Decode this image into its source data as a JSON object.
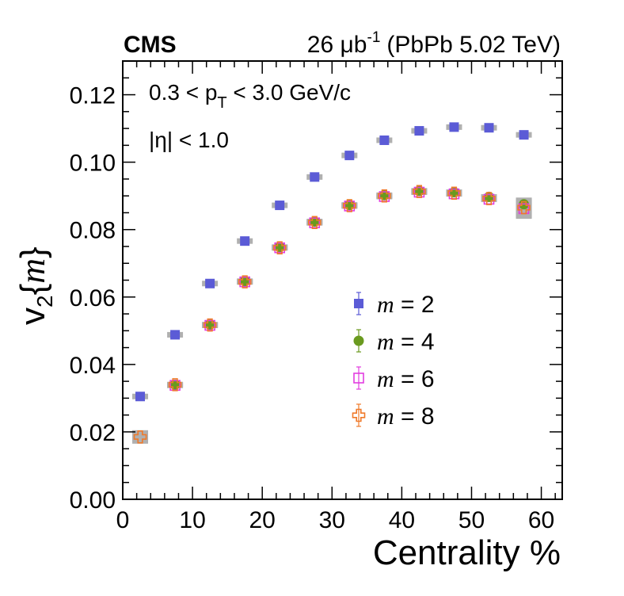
{
  "header": {
    "experiment": "CMS",
    "lumi_value": "26",
    "lumi_unit": "μb",
    "lumi_exp": "-1",
    "collision": "(PbPb 5.02 TeV)"
  },
  "annotations": {
    "pt_cut": {
      "pre": "0.3 < p",
      "sub": "T",
      "post": " < 3.0 GeV/c"
    },
    "eta_cut": "|η| < 1.0"
  },
  "colors": {
    "m2": "#5b5bd6",
    "m4": "#6a9a1f",
    "m6": "#e23de0",
    "m8": "#f07a2a",
    "syst": "#b0b0b0"
  },
  "chart_data": {
    "type": "scatter",
    "title": "",
    "xlabel": "Centrality %",
    "ylabel": {
      "v": "v",
      "sub": "2",
      "open": "{",
      "m": "m",
      "close": "}"
    },
    "xlim": [
      0,
      63
    ],
    "ylim": [
      0.0,
      0.13
    ],
    "xticks": [
      0,
      10,
      20,
      30,
      40,
      50,
      60
    ],
    "xtick_labels": [
      "0",
      "10",
      "20",
      "30",
      "40",
      "50",
      "60"
    ],
    "yticks": [
      0.0,
      0.02,
      0.04,
      0.06,
      0.08,
      0.1,
      0.12
    ],
    "ytick_labels": [
      "0.00",
      "0.02",
      "0.04",
      "0.06",
      "0.08",
      "0.10",
      "0.12"
    ],
    "legend_position": "right-center",
    "series": [
      {
        "name": "m = 2",
        "m_value": "2",
        "marker": "square-filled",
        "color_key": "m2",
        "x": [
          2.5,
          7.5,
          12.5,
          17.5,
          22.5,
          27.5,
          32.5,
          37.5,
          42.5,
          47.5,
          52.5,
          57.5
        ],
        "y": [
          0.0305,
          0.0488,
          0.064,
          0.0766,
          0.0872,
          0.0956,
          0.102,
          0.1065,
          0.1093,
          0.1104,
          0.1102,
          0.1081
        ],
        "syst": [
          0.0005,
          0.0005,
          0.0005,
          0.0005,
          0.0005,
          0.0005,
          0.0005,
          0.0005,
          0.0005,
          0.0005,
          0.0005,
          0.0005
        ]
      },
      {
        "name": "m = 4",
        "m_value": "4",
        "marker": "circle-filled",
        "color_key": "m4",
        "x": [
          7.5,
          12.5,
          17.5,
          22.5,
          27.5,
          32.5,
          37.5,
          42.5,
          47.5,
          52.5,
          57.5
        ],
        "y": [
          0.034,
          0.0518,
          0.0647,
          0.0748,
          0.0824,
          0.0873,
          0.0902,
          0.0915,
          0.0911,
          0.0897,
          0.0875
        ],
        "syst": [
          0.0007,
          0.0006,
          0.0006,
          0.0006,
          0.0006,
          0.0006,
          0.0006,
          0.0007,
          0.0007,
          0.0008,
          0.0018
        ]
      },
      {
        "name": "m = 6",
        "m_value": "6",
        "marker": "square-open",
        "color_key": "m6",
        "x": [
          7.5,
          12.5,
          17.5,
          22.5,
          27.5,
          32.5,
          37.5,
          42.5,
          47.5,
          52.5,
          57.5
        ],
        "y": [
          0.0338,
          0.0516,
          0.0645,
          0.0746,
          0.082,
          0.087,
          0.0898,
          0.0911,
          0.0906,
          0.089,
          0.0862
        ],
        "syst": [
          0.0007,
          0.0006,
          0.0006,
          0.0006,
          0.0006,
          0.0006,
          0.0006,
          0.0007,
          0.0007,
          0.0008,
          0.003
        ]
      },
      {
        "name": "m = 8",
        "m_value": "8",
        "marker": "cross-open",
        "color_key": "m8",
        "x": [
          2.5,
          7.5,
          12.5,
          17.5,
          22.5,
          27.5,
          32.5,
          37.5,
          42.5,
          47.5,
          52.5,
          57.5
        ],
        "y": [
          0.0185,
          0.034,
          0.0517,
          0.0645,
          0.0746,
          0.0821,
          0.0871,
          0.09,
          0.0913,
          0.0908,
          0.0892,
          0.0865
        ],
        "syst": [
          0.002,
          0.0007,
          0.0006,
          0.0006,
          0.0006,
          0.0006,
          0.0006,
          0.0006,
          0.0007,
          0.0007,
          0.0008,
          0.003
        ]
      }
    ]
  }
}
